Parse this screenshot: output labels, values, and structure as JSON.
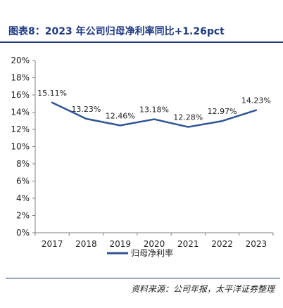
{
  "title": "图表8：2023 年公司归母净利率同比+1.26pct",
  "source": "资料来源：公司年报，太平洋证券整理",
  "colors": {
    "title": "#1f3a82",
    "line": "#2f5597",
    "axis": "#7f7f7f",
    "text": "#222222"
  },
  "chart_data": {
    "type": "line",
    "categories": [
      "2017",
      "2018",
      "2019",
      "2020",
      "2021",
      "2022",
      "2023"
    ],
    "series": [
      {
        "name": "归母净利率",
        "values": [
          15.11,
          13.23,
          12.46,
          13.18,
          12.28,
          12.97,
          14.23
        ],
        "labels": [
          "15.11%",
          "13.23%",
          "12.46%",
          "13.18%",
          "12.28%",
          "12.97%",
          "14.23%"
        ]
      }
    ],
    "yticks": [
      "0%",
      "2%",
      "4%",
      "6%",
      "8%",
      "10%",
      "12%",
      "14%",
      "16%",
      "18%",
      "20%"
    ],
    "ylim": [
      0,
      20
    ],
    "grid": false,
    "legend_position": "bottom"
  }
}
